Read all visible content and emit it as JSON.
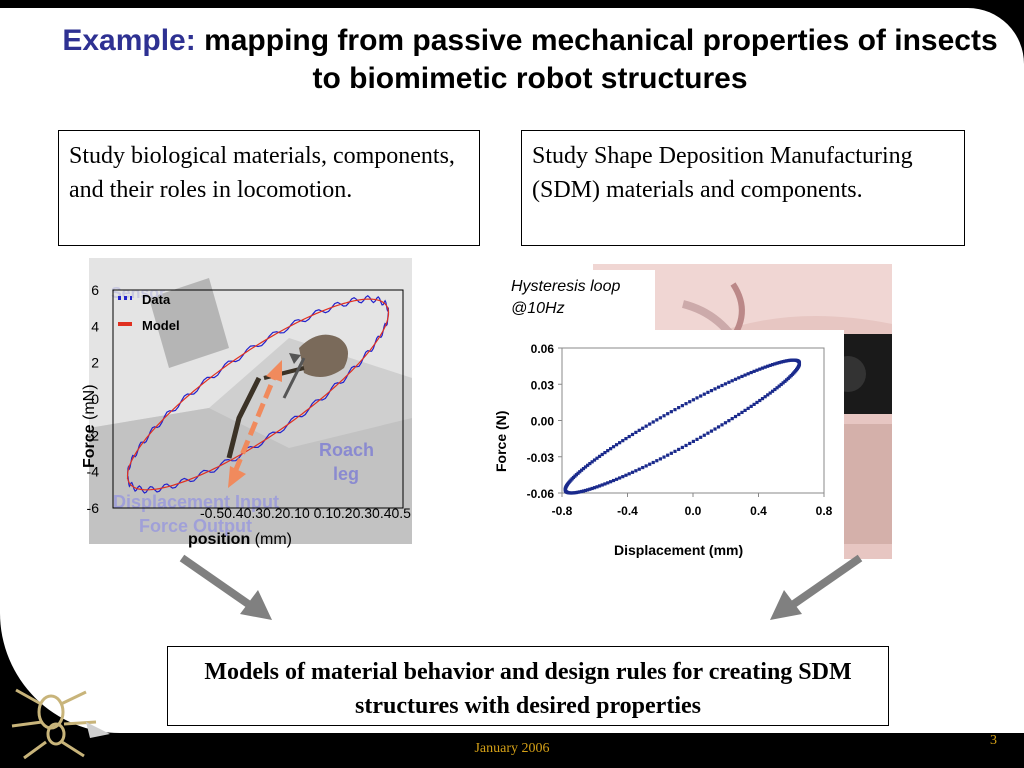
{
  "title": {
    "lead": "Example:",
    "rest": " mapping from passive mechanical properties of insects to biomimetic robot structures"
  },
  "box_left": {
    "text": "Study biological materials, components, and their roles in locomotion."
  },
  "box_right": {
    "text": "Study Shape Deposition Manufacturing (SDM) materials and components."
  },
  "box_bottom": {
    "text": "Models of material behavior and design rules for creating SDM structures with desired properties"
  },
  "photo_left": {
    "roach_label_line1": "Roach",
    "roach_label_line2": "leg",
    "displacement_label": "Displacement Input",
    "force_label": "Force Output",
    "sensor_label": "Sensor"
  },
  "inset_caption": {
    "line1": "Hysteresis loop",
    "line2": "@10Hz"
  },
  "footer": {
    "date": "January 2006",
    "page": "3"
  },
  "colors": {
    "title_lead": "#2E3192",
    "footer": "#D4A017",
    "data_series": "#2222CC",
    "model_series": "#E03020",
    "hysteresis": "#1A2A8C"
  },
  "chart_data": [
    {
      "type": "line",
      "title": "",
      "xlabel_bold": "position",
      "xlabel_rest": " (mm)",
      "ylabel_bold": "Force",
      "ylabel_rest": " (mN)",
      "xlim": [
        -0.5,
        0.5
      ],
      "ylim": [
        -6,
        6
      ],
      "x_tick_labels": "-0.50.40.30.20.10  0.10.20.30.40.5",
      "y_ticks": [
        "6",
        "4",
        "2",
        "0",
        "-2",
        "-4",
        "-6"
      ],
      "y_tick_values": [
        6,
        4,
        2,
        0,
        -2,
        -4,
        -6
      ],
      "legend": {
        "position": "top-left",
        "entries": [
          "Data",
          "Model"
        ]
      },
      "series": [
        {
          "name": "Data",
          "shape": "ellipse-loop",
          "x_range": [
            -0.45,
            0.45
          ],
          "y_range": [
            -5,
            5.5
          ]
        },
        {
          "name": "Model",
          "shape": "ellipse-loop",
          "x_range": [
            -0.45,
            0.45
          ],
          "y_range": [
            -5,
            5.5
          ]
        }
      ]
    },
    {
      "type": "scatter",
      "title": "",
      "xlabel": "Displacement (mm)",
      "ylabel": "Force (N)",
      "xlim": [
        -0.8,
        0.8
      ],
      "ylim": [
        -0.06,
        0.06
      ],
      "x_ticks": [
        "-0.8",
        "-0.4",
        "0.0",
        "0.4",
        "0.8"
      ],
      "x_tick_values": [
        -0.8,
        -0.4,
        0.0,
        0.4,
        0.8
      ],
      "y_ticks": [
        "0.06",
        "0.03",
        "0.00",
        "-0.03",
        "-0.06"
      ],
      "y_tick_values": [
        0.06,
        0.03,
        0.0,
        -0.03,
        -0.06
      ],
      "series": [
        {
          "name": "",
          "shape": "ellipse-loop",
          "x_range": [
            -0.78,
            0.65
          ],
          "y_range": [
            -0.06,
            0.05
          ]
        }
      ]
    }
  ]
}
